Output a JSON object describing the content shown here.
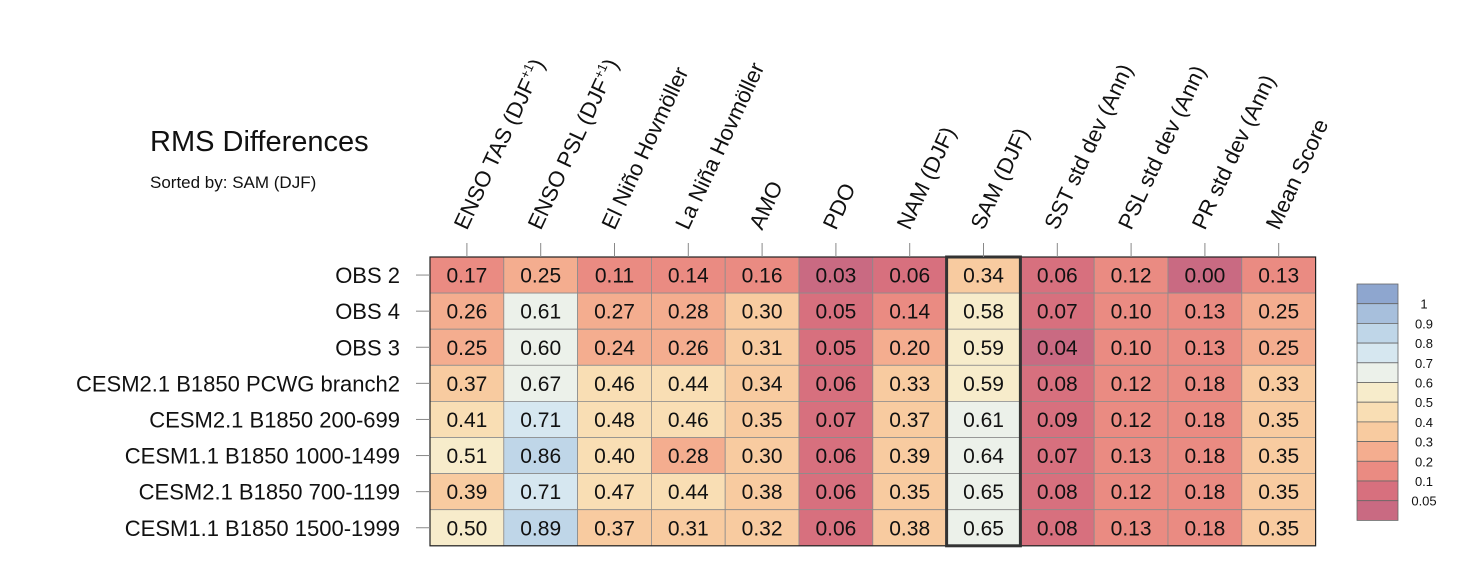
{
  "chart_data": {
    "type": "heatmap",
    "title": "RMS Differences",
    "subtitle": "Sorted by: SAM (DJF)",
    "columns": [
      {
        "label": "ENSO TAS (DJF",
        "sup": "+1",
        "close": ")"
      },
      {
        "label": "ENSO PSL (DJF",
        "sup": "+1",
        "close": ")"
      },
      {
        "label": "El Niño Hovmöller",
        "sup": "",
        "close": ""
      },
      {
        "label": "La Niña Hovmöller",
        "sup": "",
        "close": ""
      },
      {
        "label": "AMO",
        "sup": "",
        "close": ""
      },
      {
        "label": "PDO",
        "sup": "",
        "close": ""
      },
      {
        "label": "NAM (DJF)",
        "sup": "",
        "close": ""
      },
      {
        "label": "SAM (DJF)",
        "sup": "",
        "close": ""
      },
      {
        "label": "SST std dev (Ann)",
        "sup": "",
        "close": ""
      },
      {
        "label": "PSL std dev (Ann)",
        "sup": "",
        "close": ""
      },
      {
        "label": "PR std dev (Ann)",
        "sup": "",
        "close": ""
      },
      {
        "label": "Mean Score",
        "sup": "",
        "close": ""
      }
    ],
    "rows": [
      "OBS 2",
      "OBS 4",
      "OBS 3",
      "CESM2.1 B1850 PCWG branch2",
      "CESM2.1 B1850 200-699",
      "CESM1.1 B1850 1000-1499",
      "CESM2.1 B1850 700-1199",
      "CESM1.1 B1850 1500-1999"
    ],
    "values": [
      [
        "0.17",
        "0.25",
        "0.11",
        "0.14",
        "0.16",
        "0.03",
        "0.06",
        "0.34",
        "0.06",
        "0.12",
        "0.00",
        "0.13"
      ],
      [
        "0.26",
        "0.61",
        "0.27",
        "0.28",
        "0.30",
        "0.05",
        "0.14",
        "0.58",
        "0.07",
        "0.10",
        "0.13",
        "0.25"
      ],
      [
        "0.25",
        "0.60",
        "0.24",
        "0.26",
        "0.31",
        "0.05",
        "0.20",
        "0.59",
        "0.04",
        "0.10",
        "0.13",
        "0.25"
      ],
      [
        "0.37",
        "0.67",
        "0.46",
        "0.44",
        "0.34",
        "0.06",
        "0.33",
        "0.59",
        "0.08",
        "0.12",
        "0.18",
        "0.33"
      ],
      [
        "0.41",
        "0.71",
        "0.48",
        "0.46",
        "0.35",
        "0.07",
        "0.37",
        "0.61",
        "0.09",
        "0.12",
        "0.18",
        "0.35"
      ],
      [
        "0.51",
        "0.86",
        "0.40",
        "0.28",
        "0.30",
        "0.06",
        "0.39",
        "0.64",
        "0.07",
        "0.13",
        "0.18",
        "0.35"
      ],
      [
        "0.39",
        "0.71",
        "0.47",
        "0.44",
        "0.38",
        "0.06",
        "0.35",
        "0.65",
        "0.08",
        "0.12",
        "0.18",
        "0.35"
      ],
      [
        "0.50",
        "0.89",
        "0.37",
        "0.31",
        "0.32",
        "0.06",
        "0.38",
        "0.65",
        "0.08",
        "0.13",
        "0.18",
        "0.35"
      ]
    ],
    "highlighted_column": "SAM (DJF)",
    "colorbar": {
      "levels": [
        "1",
        "0.9",
        "0.8",
        "0.7",
        "0.6",
        "0.5",
        "0.4",
        "0.3",
        "0.2",
        "0.1",
        "0.05"
      ],
      "colors": [
        "#8ea6cf",
        "#a7bfdc",
        "#bfd6e8",
        "#d6e7f0",
        "#ecf1ea",
        "#f7eccb",
        "#f9deb4",
        "#f8cba0",
        "#f4ad8f",
        "#ea8b82",
        "#d7707e",
        "#c96a82"
      ]
    },
    "legend_position": "right"
  }
}
